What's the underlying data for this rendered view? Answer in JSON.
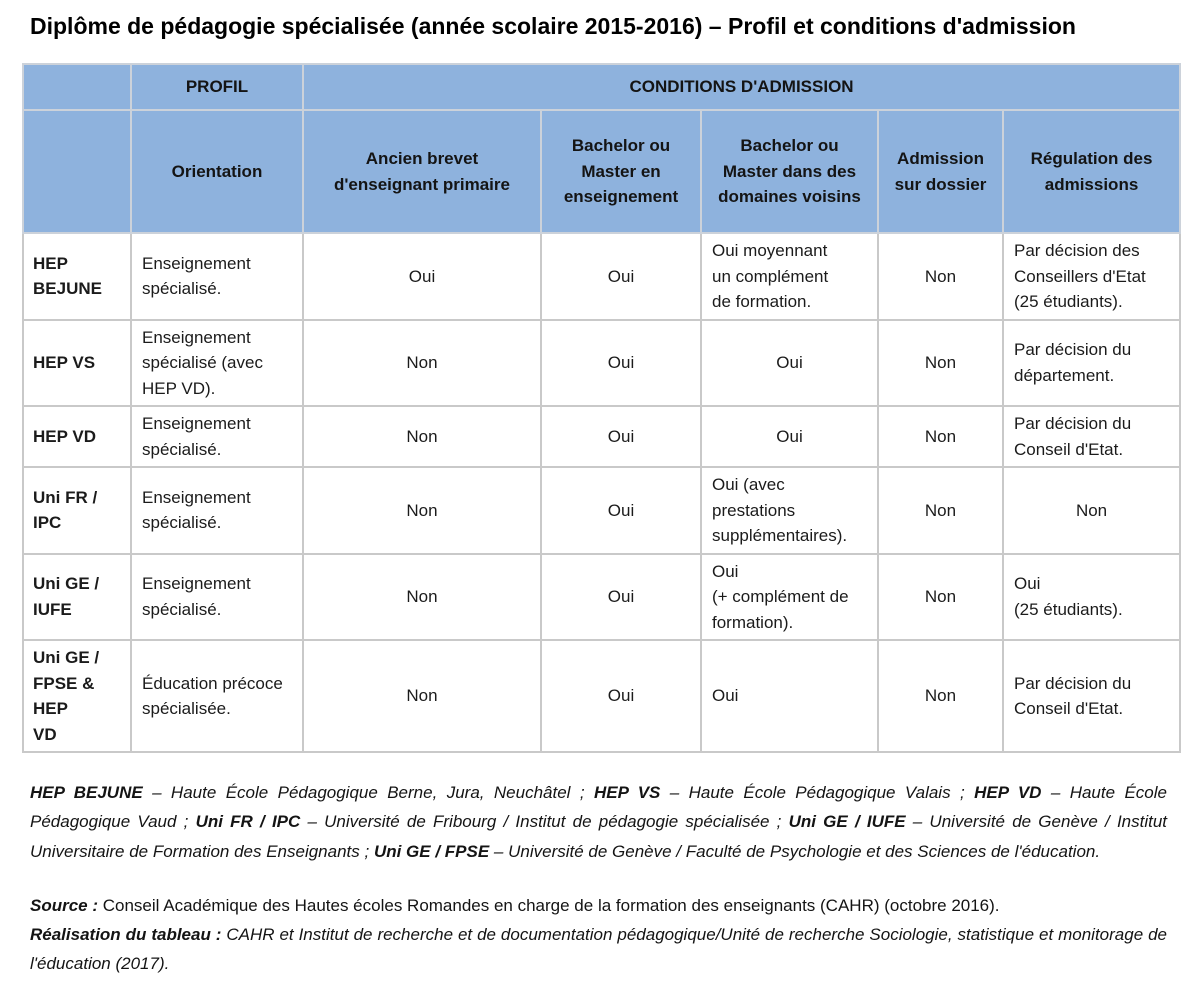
{
  "title": "Diplôme de pédagogie spécialisée (année scolaire 2015-2016) – Profil et conditions d'admission",
  "table": {
    "header": {
      "profil": "PROFIL",
      "conditions": "CONDITIONS D'ADMISSION",
      "columns": [
        "Orientation",
        "Ancien brevet\nd'enseignant primaire",
        "Bachelor ou\nMaster en\nenseignement",
        "Bachelor ou\nMaster dans des\ndomaines voisins",
        "Admission\nsur dossier",
        "Régulation des\nadmissions"
      ]
    },
    "rows": [
      {
        "label": "HEP\nBEJUNE",
        "cells": [
          "Enseignement\nspécialisé.",
          "Oui",
          "Oui",
          "Oui moyennant\nun complément\nde formation.",
          "Non",
          "Par décision des\nConseillers d'Etat\n(25 étudiants)."
        ]
      },
      {
        "label": "HEP VS",
        "cells": [
          "Enseignement\nspécialisé (avec\nHEP VD).",
          "Non",
          "Oui",
          "Oui",
          "Non",
          "Par décision du\ndépartement."
        ]
      },
      {
        "label": "HEP VD",
        "cells": [
          "Enseignement\nspécialisé.",
          "Non",
          "Oui",
          "Oui",
          "Non",
          "Par décision du\nConseil d'Etat."
        ]
      },
      {
        "label": "Uni FR /\nIPC",
        "cells": [
          "Enseignement\nspécialisé.",
          "Non",
          "Oui",
          "Oui (avec\nprestations\nsupplémentaires).",
          "Non",
          "Non"
        ]
      },
      {
        "label": "Uni GE /\nIUFE",
        "cells": [
          "Enseignement\nspécialisé.",
          "Non",
          "Oui",
          "Oui\n(+ complément de\nformation).",
          "Non",
          "Oui\n(25 étudiants)."
        ]
      },
      {
        "label": "Uni GE /\nFPSE & HEP\nVD",
        "cells": [
          "Éducation précoce\nspécialisée.",
          "Non",
          "Oui",
          "Oui",
          "Non",
          "Par décision du\nConseil d'Etat."
        ]
      }
    ]
  },
  "legend": {
    "runs": [
      {
        "t": "HEP BEJUNE",
        "b": true,
        "i": true
      },
      {
        "t": " – Haute École Pédagogique Berne, Jura, Neuchâtel ; ",
        "i": true
      },
      {
        "t": "HEP VS",
        "b": true,
        "i": true
      },
      {
        "t": " – Haute École Pédagogique Valais ; ",
        "i": true
      },
      {
        "t": "HEP VD",
        "b": true,
        "i": true
      },
      {
        "t": " – Haute École Pédagogique Vaud ; ",
        "i": true
      },
      {
        "t": "Uni FR / IPC",
        "b": true,
        "i": true
      },
      {
        "t": " – Université de Fribourg / Institut de pédagogie spécialisée ; ",
        "i": true
      },
      {
        "t": "Uni GE / IUFE",
        "b": true,
        "i": true
      },
      {
        "t": " – Université de Genève / Institut Universitaire de Formation des Enseignants ; ",
        "i": true
      },
      {
        "t": "Uni GE / FPSE",
        "b": true,
        "i": true
      },
      {
        "t": " – Université de Genève / Faculté de Psychologie et des Sciences de l'éducation.",
        "i": true
      }
    ]
  },
  "source": {
    "runs": [
      {
        "t": "Source : ",
        "b": true,
        "i": true
      },
      {
        "t": "Conseil Académique des Hautes écoles Romandes en charge de la formation des enseignants (CAHR) (octobre 2016)."
      }
    ]
  },
  "realisation": {
    "runs": [
      {
        "t": "Réalisation du tableau : ",
        "b": true,
        "i": true
      },
      {
        "t": "CAHR et Institut de recherche et de documentation pédagogique/Unité de recherche Sociologie, statistique et monitorage de l'éducation (2017).",
        "i": true
      }
    ]
  }
}
